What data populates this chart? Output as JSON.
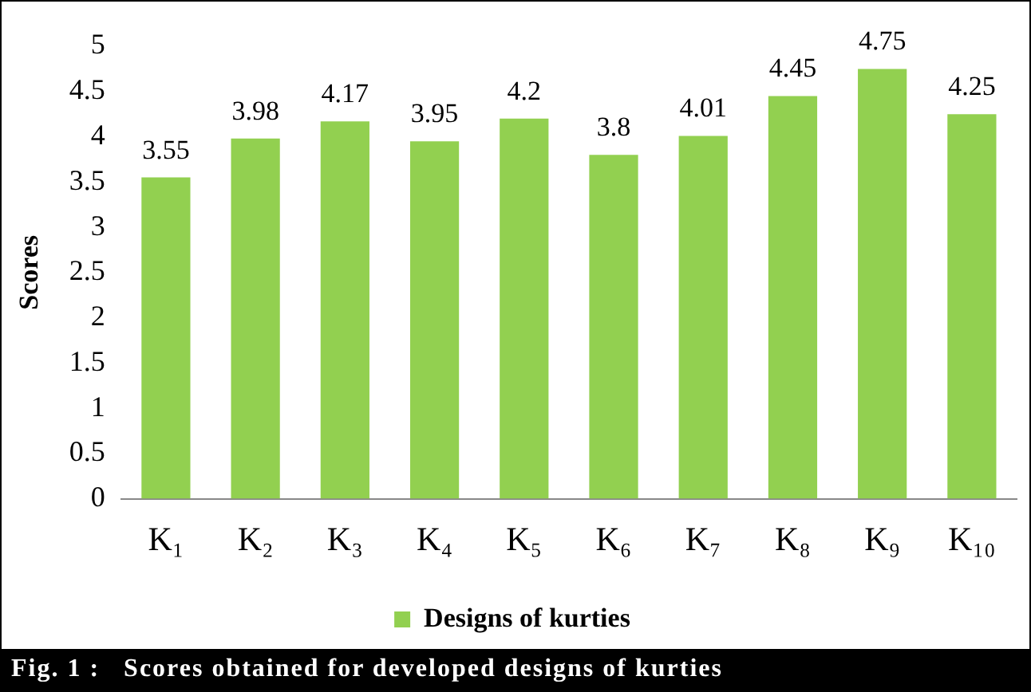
{
  "chart_data": {
    "type": "bar",
    "ylabel": "Scores",
    "categories": [
      "K₁",
      "K₂",
      "K₃",
      "K₄",
      "K₅",
      "K₆",
      "K₇",
      "K₈",
      "K₉",
      "K₁₀"
    ],
    "series": [
      {
        "name": "Designs of kurties",
        "color": "#92d050",
        "values": [
          3.55,
          3.98,
          4.17,
          3.95,
          4.2,
          3.8,
          4.01,
          4.45,
          4.75,
          4.25
        ]
      }
    ],
    "ylim": [
      0,
      5
    ],
    "yticks": [
      0,
      0.5,
      1,
      1.5,
      2,
      2.5,
      3,
      3.5,
      4,
      4.5,
      5
    ],
    "grid": false,
    "legend": "bottom",
    "data_labels": true,
    "annotations": [
      "Fig. 1 :   Scores obtained for developed designs of kurties"
    ]
  }
}
